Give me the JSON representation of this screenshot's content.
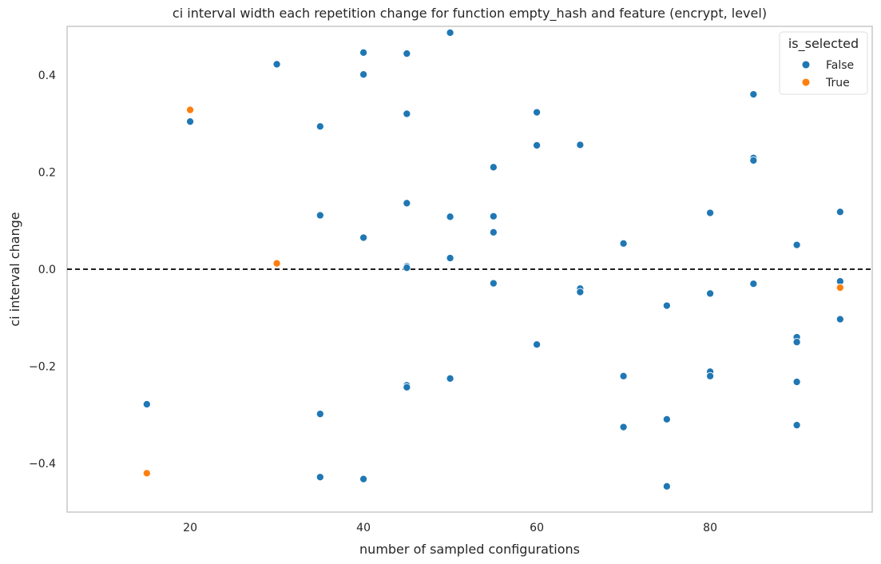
{
  "chart_data": {
    "type": "scatter",
    "title": "ci interval width each repetition change for function empty_hash and feature (encrypt, level)",
    "xlabel": "number of sampled configurations",
    "ylabel": "ci interval change",
    "xlim": [
      5.8,
      98.7
    ],
    "ylim": [
      -0.5,
      0.5
    ],
    "xticks": [
      20,
      40,
      60,
      80
    ],
    "yticks": [
      0.4,
      0.2,
      0.0,
      -0.2,
      -0.4
    ],
    "ytick_labels": [
      "0.4",
      "0.2",
      "0.0",
      "−0.2",
      "−0.4"
    ],
    "grid": false,
    "reference_line": {
      "y": 0.0,
      "style": "dashed",
      "color": "#000000"
    },
    "legend": {
      "title": "is_selected",
      "placement": "top-right"
    },
    "series": [
      {
        "name": "False",
        "color": "#1f77b4",
        "points": [
          {
            "x": 15,
            "y": -0.278
          },
          {
            "x": 20,
            "y": 0.304
          },
          {
            "x": 30,
            "y": 0.422
          },
          {
            "x": 35,
            "y": 0.294
          },
          {
            "x": 35,
            "y": 0.111
          },
          {
            "x": 35,
            "y": -0.298
          },
          {
            "x": 35,
            "y": -0.428
          },
          {
            "x": 40,
            "y": 0.446
          },
          {
            "x": 40,
            "y": 0.401
          },
          {
            "x": 40,
            "y": 0.065
          },
          {
            "x": 40,
            "y": -0.432
          },
          {
            "x": 45,
            "y": 0.444
          },
          {
            "x": 45,
            "y": 0.32
          },
          {
            "x": 45,
            "y": 0.136
          },
          {
            "x": 45,
            "y": 0.006
          },
          {
            "x": 45,
            "y": 0.003
          },
          {
            "x": 45,
            "y": -0.239
          },
          {
            "x": 45,
            "y": -0.243
          },
          {
            "x": 50,
            "y": 0.487
          },
          {
            "x": 50,
            "y": 0.108
          },
          {
            "x": 50,
            "y": 0.023
          },
          {
            "x": 50,
            "y": -0.225
          },
          {
            "x": 55,
            "y": 0.21
          },
          {
            "x": 55,
            "y": 0.109
          },
          {
            "x": 55,
            "y": 0.076
          },
          {
            "x": 55,
            "y": -0.029
          },
          {
            "x": 60,
            "y": 0.323
          },
          {
            "x": 60,
            "y": 0.255
          },
          {
            "x": 60,
            "y": -0.155
          },
          {
            "x": 65,
            "y": 0.256
          },
          {
            "x": 65,
            "y": -0.04
          },
          {
            "x": 65,
            "y": -0.047
          },
          {
            "x": 70,
            "y": 0.053
          },
          {
            "x": 70,
            "y": -0.22
          },
          {
            "x": 70,
            "y": -0.325
          },
          {
            "x": 75,
            "y": -0.075
          },
          {
            "x": 75,
            "y": -0.309
          },
          {
            "x": 75,
            "y": -0.447
          },
          {
            "x": 80,
            "y": 0.116
          },
          {
            "x": 80,
            "y": -0.05
          },
          {
            "x": 80,
            "y": -0.211
          },
          {
            "x": 80,
            "y": -0.22
          },
          {
            "x": 85,
            "y": 0.36
          },
          {
            "x": 85,
            "y": 0.229
          },
          {
            "x": 85,
            "y": 0.224
          },
          {
            "x": 85,
            "y": -0.03
          },
          {
            "x": 90,
            "y": 0.05
          },
          {
            "x": 90,
            "y": -0.14
          },
          {
            "x": 90,
            "y": -0.15
          },
          {
            "x": 90,
            "y": -0.232
          },
          {
            "x": 90,
            "y": -0.321
          },
          {
            "x": 95,
            "y": 0.118
          },
          {
            "x": 95,
            "y": -0.025
          },
          {
            "x": 95,
            "y": -0.103
          }
        ]
      },
      {
        "name": "True",
        "color": "#ff7f0e",
        "points": [
          {
            "x": 15,
            "y": -0.42
          },
          {
            "x": 20,
            "y": 0.328
          },
          {
            "x": 30,
            "y": 0.012
          },
          {
            "x": 95,
            "y": -0.038
          }
        ]
      }
    ]
  }
}
